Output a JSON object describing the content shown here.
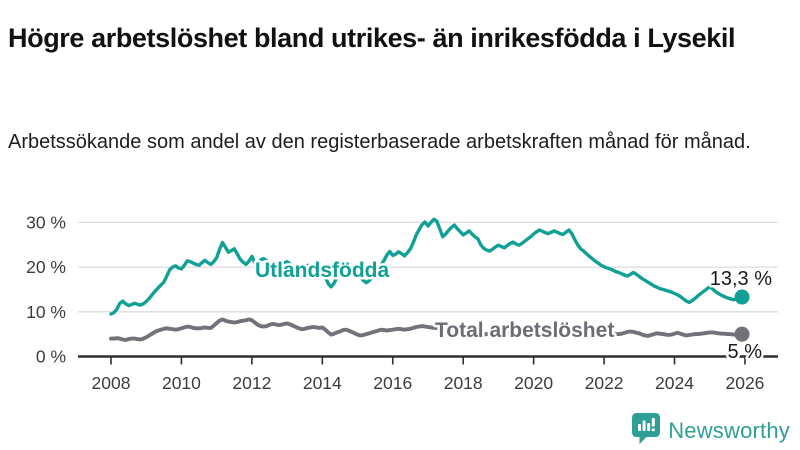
{
  "title": "Högre arbetslöshet bland utrikes- än inrikesfödda i Lysekil",
  "subtitle": "Arbetssökande som andel av den registerbaserade arbetskraften månad för månad.",
  "branding": {
    "logo_text": "Newsworthy",
    "logo_icon": "newsworthy-speech-bubble-barchart-icon",
    "brand_color": "#2f9e96"
  },
  "chart_data": {
    "type": "line",
    "title": "Högre arbetslöshet bland utrikes- än inrikesfödda i Lysekil",
    "subtitle": "Arbetssökande som andel av den registerbaserade arbetskraften månad för månad.",
    "xlabel": "",
    "ylabel": "",
    "grid": true,
    "xlim": [
      2007.05,
      2026.95
    ],
    "ylim": [
      0,
      34
    ],
    "x_start": 2008.0,
    "x_step": 0.0833,
    "x_tick_years": [
      2008,
      2010,
      2012,
      2014,
      2016,
      2018,
      2020,
      2022,
      2024,
      2026
    ],
    "x_tick_labels": [
      "2008",
      "2010",
      "2012",
      "2014",
      "2016",
      "2018",
      "2020",
      "2022",
      "2024",
      "2026"
    ],
    "y_ticks": [
      0,
      10,
      20,
      30
    ],
    "y_tick_labels": [
      "0 %",
      "10 %",
      "20 %",
      "30 %"
    ],
    "grid_color": "#dbdbdb",
    "axis_color": "#2f2f2f",
    "tick_label_color": "#3c3c3c",
    "value_label_color": "#1a1a1a",
    "series": [
      {
        "name": "Utlandsfödda",
        "color": "#11a096",
        "label_color": "#11a096",
        "end_value": 13.3,
        "end_value_label": "13,3 %",
        "values": [
          9.5,
          9.8,
          10.6,
          11.9,
          12.4,
          11.8,
          11.4,
          11.6,
          11.9,
          11.7,
          11.5,
          11.8,
          12.3,
          13.0,
          13.8,
          14.6,
          15.3,
          16.0,
          16.6,
          18.0,
          19.4,
          20.0,
          20.3,
          19.8,
          19.6,
          20.4,
          21.4,
          21.2,
          20.9,
          20.6,
          20.4,
          21.0,
          21.5,
          21.0,
          20.6,
          21.2,
          22.1,
          24.0,
          25.5,
          24.4,
          23.3,
          23.7,
          24.1,
          23.0,
          21.8,
          21.1,
          20.6,
          21.3,
          22.4,
          21.0,
          20.2,
          21.6,
          21.9,
          21.4,
          20.5,
          19.6,
          19.0,
          19.8,
          20.6,
          20.9,
          21.2,
          20.7,
          20.2,
          19.9,
          19.7,
          19.9,
          20.1,
          20.4,
          20.2,
          19.9,
          19.6,
          19.4,
          19.2,
          17.8,
          16.3,
          15.6,
          16.4,
          17.8,
          18.8,
          19.3,
          19.6,
          19.4,
          19.0,
          18.8,
          18.6,
          17.8,
          17.0,
          16.5,
          17.0,
          17.8,
          18.6,
          19.5,
          20.5,
          21.5,
          22.7,
          23.5,
          22.6,
          22.9,
          23.4,
          23.0,
          22.5,
          23.2,
          24.1,
          25.5,
          27.2,
          28.4,
          29.5,
          30.1,
          29.2,
          30.0,
          30.7,
          30.3,
          28.6,
          26.8,
          27.4,
          28.2,
          28.9,
          29.4,
          28.6,
          27.9,
          27.2,
          27.6,
          28.1,
          27.4,
          26.8,
          26.3,
          25.0,
          24.2,
          23.8,
          23.6,
          24.0,
          24.5,
          24.9,
          24.6,
          24.3,
          24.8,
          25.3,
          25.6,
          25.2,
          24.9,
          25.3,
          25.8,
          26.3,
          26.8,
          27.4,
          27.9,
          28.3,
          28.0,
          27.7,
          27.5,
          27.8,
          28.1,
          27.8,
          27.5,
          27.3,
          27.8,
          28.3,
          27.5,
          26.2,
          25.0,
          24.1,
          23.6,
          23.0,
          22.4,
          21.9,
          21.3,
          20.9,
          20.4,
          20.1,
          19.8,
          19.6,
          19.3,
          19.0,
          18.8,
          18.5,
          18.2,
          18.0,
          18.4,
          18.8,
          18.4,
          17.9,
          17.4,
          17.0,
          16.6,
          16.2,
          15.8,
          15.5,
          15.2,
          15.0,
          14.8,
          14.6,
          14.4,
          14.1,
          13.8,
          13.4,
          12.9,
          12.4,
          12.1,
          12.5,
          13.0,
          13.6,
          14.1,
          14.6,
          15.1,
          15.6,
          15.1,
          14.5,
          14.1,
          13.7,
          13.4,
          13.1,
          12.9,
          12.7,
          12.8,
          13.1,
          13.3
        ]
      },
      {
        "name": "Total arbetslöshet",
        "color": "#74717a",
        "label_color": "#6e6b75",
        "end_value": 5,
        "end_value_label": "5 %",
        "values": [
          4.0,
          4.0,
          4.1,
          4.0,
          3.8,
          3.7,
          3.9,
          4.0,
          4.0,
          3.9,
          3.8,
          4.0,
          4.3,
          4.7,
          5.1,
          5.5,
          5.8,
          6.0,
          6.2,
          6.3,
          6.2,
          6.1,
          6.0,
          6.1,
          6.3,
          6.5,
          6.7,
          6.6,
          6.4,
          6.3,
          6.3,
          6.4,
          6.5,
          6.4,
          6.4,
          6.9,
          7.5,
          8.0,
          8.3,
          8.0,
          7.8,
          7.7,
          7.6,
          7.7,
          7.9,
          8.0,
          8.1,
          8.3,
          8.1,
          7.6,
          7.1,
          6.8,
          6.7,
          6.8,
          7.1,
          7.3,
          7.2,
          7.0,
          7.1,
          7.3,
          7.4,
          7.2,
          6.9,
          6.6,
          6.3,
          6.1,
          6.2,
          6.4,
          6.5,
          6.6,
          6.5,
          6.4,
          6.5,
          6.0,
          5.4,
          4.9,
          5.1,
          5.4,
          5.6,
          5.9,
          6.0,
          5.8,
          5.5,
          5.2,
          4.9,
          4.7,
          4.8,
          5.0,
          5.2,
          5.4,
          5.6,
          5.8,
          6.0,
          5.9,
          5.8,
          5.9,
          6.0,
          6.1,
          6.2,
          6.1,
          6.0,
          6.1,
          6.2,
          6.4,
          6.6,
          6.7,
          6.8,
          6.7,
          6.6,
          6.5,
          6.4,
          6.4,
          6.3,
          6.2,
          6.1,
          6.0,
          5.9,
          5.8,
          5.7,
          5.6,
          5.5,
          5.4,
          5.3,
          5.2,
          5.1,
          5.0,
          4.9,
          4.9,
          5.0,
          5.1,
          5.2,
          5.2,
          5.1,
          5.0,
          5.0,
          5.1,
          5.2,
          5.2,
          5.1,
          5.2,
          5.3,
          5.4,
          5.5,
          5.7,
          6.0,
          6.3,
          6.5,
          6.6,
          6.6,
          6.5,
          6.5,
          6.4,
          6.4,
          6.3,
          6.3,
          6.3,
          6.3,
          6.2,
          6.1,
          6.0,
          5.9,
          5.8,
          5.7,
          5.6,
          5.5,
          5.4,
          5.3,
          5.3,
          5.2,
          5.2,
          5.1,
          5.1,
          5.0,
          5.0,
          5.1,
          5.3,
          5.5,
          5.6,
          5.5,
          5.3,
          5.2,
          4.9,
          4.7,
          4.6,
          4.8,
          5.0,
          5.2,
          5.1,
          5.0,
          4.9,
          4.8,
          4.9,
          5.1,
          5.3,
          5.1,
          4.9,
          4.7,
          4.8,
          4.9,
          5.0,
          5.0,
          5.1,
          5.2,
          5.3,
          5.4,
          5.4,
          5.3,
          5.2,
          5.1,
          5.1,
          5.0,
          5.0,
          4.9,
          4.9,
          5.0,
          5.0
        ]
      }
    ]
  }
}
